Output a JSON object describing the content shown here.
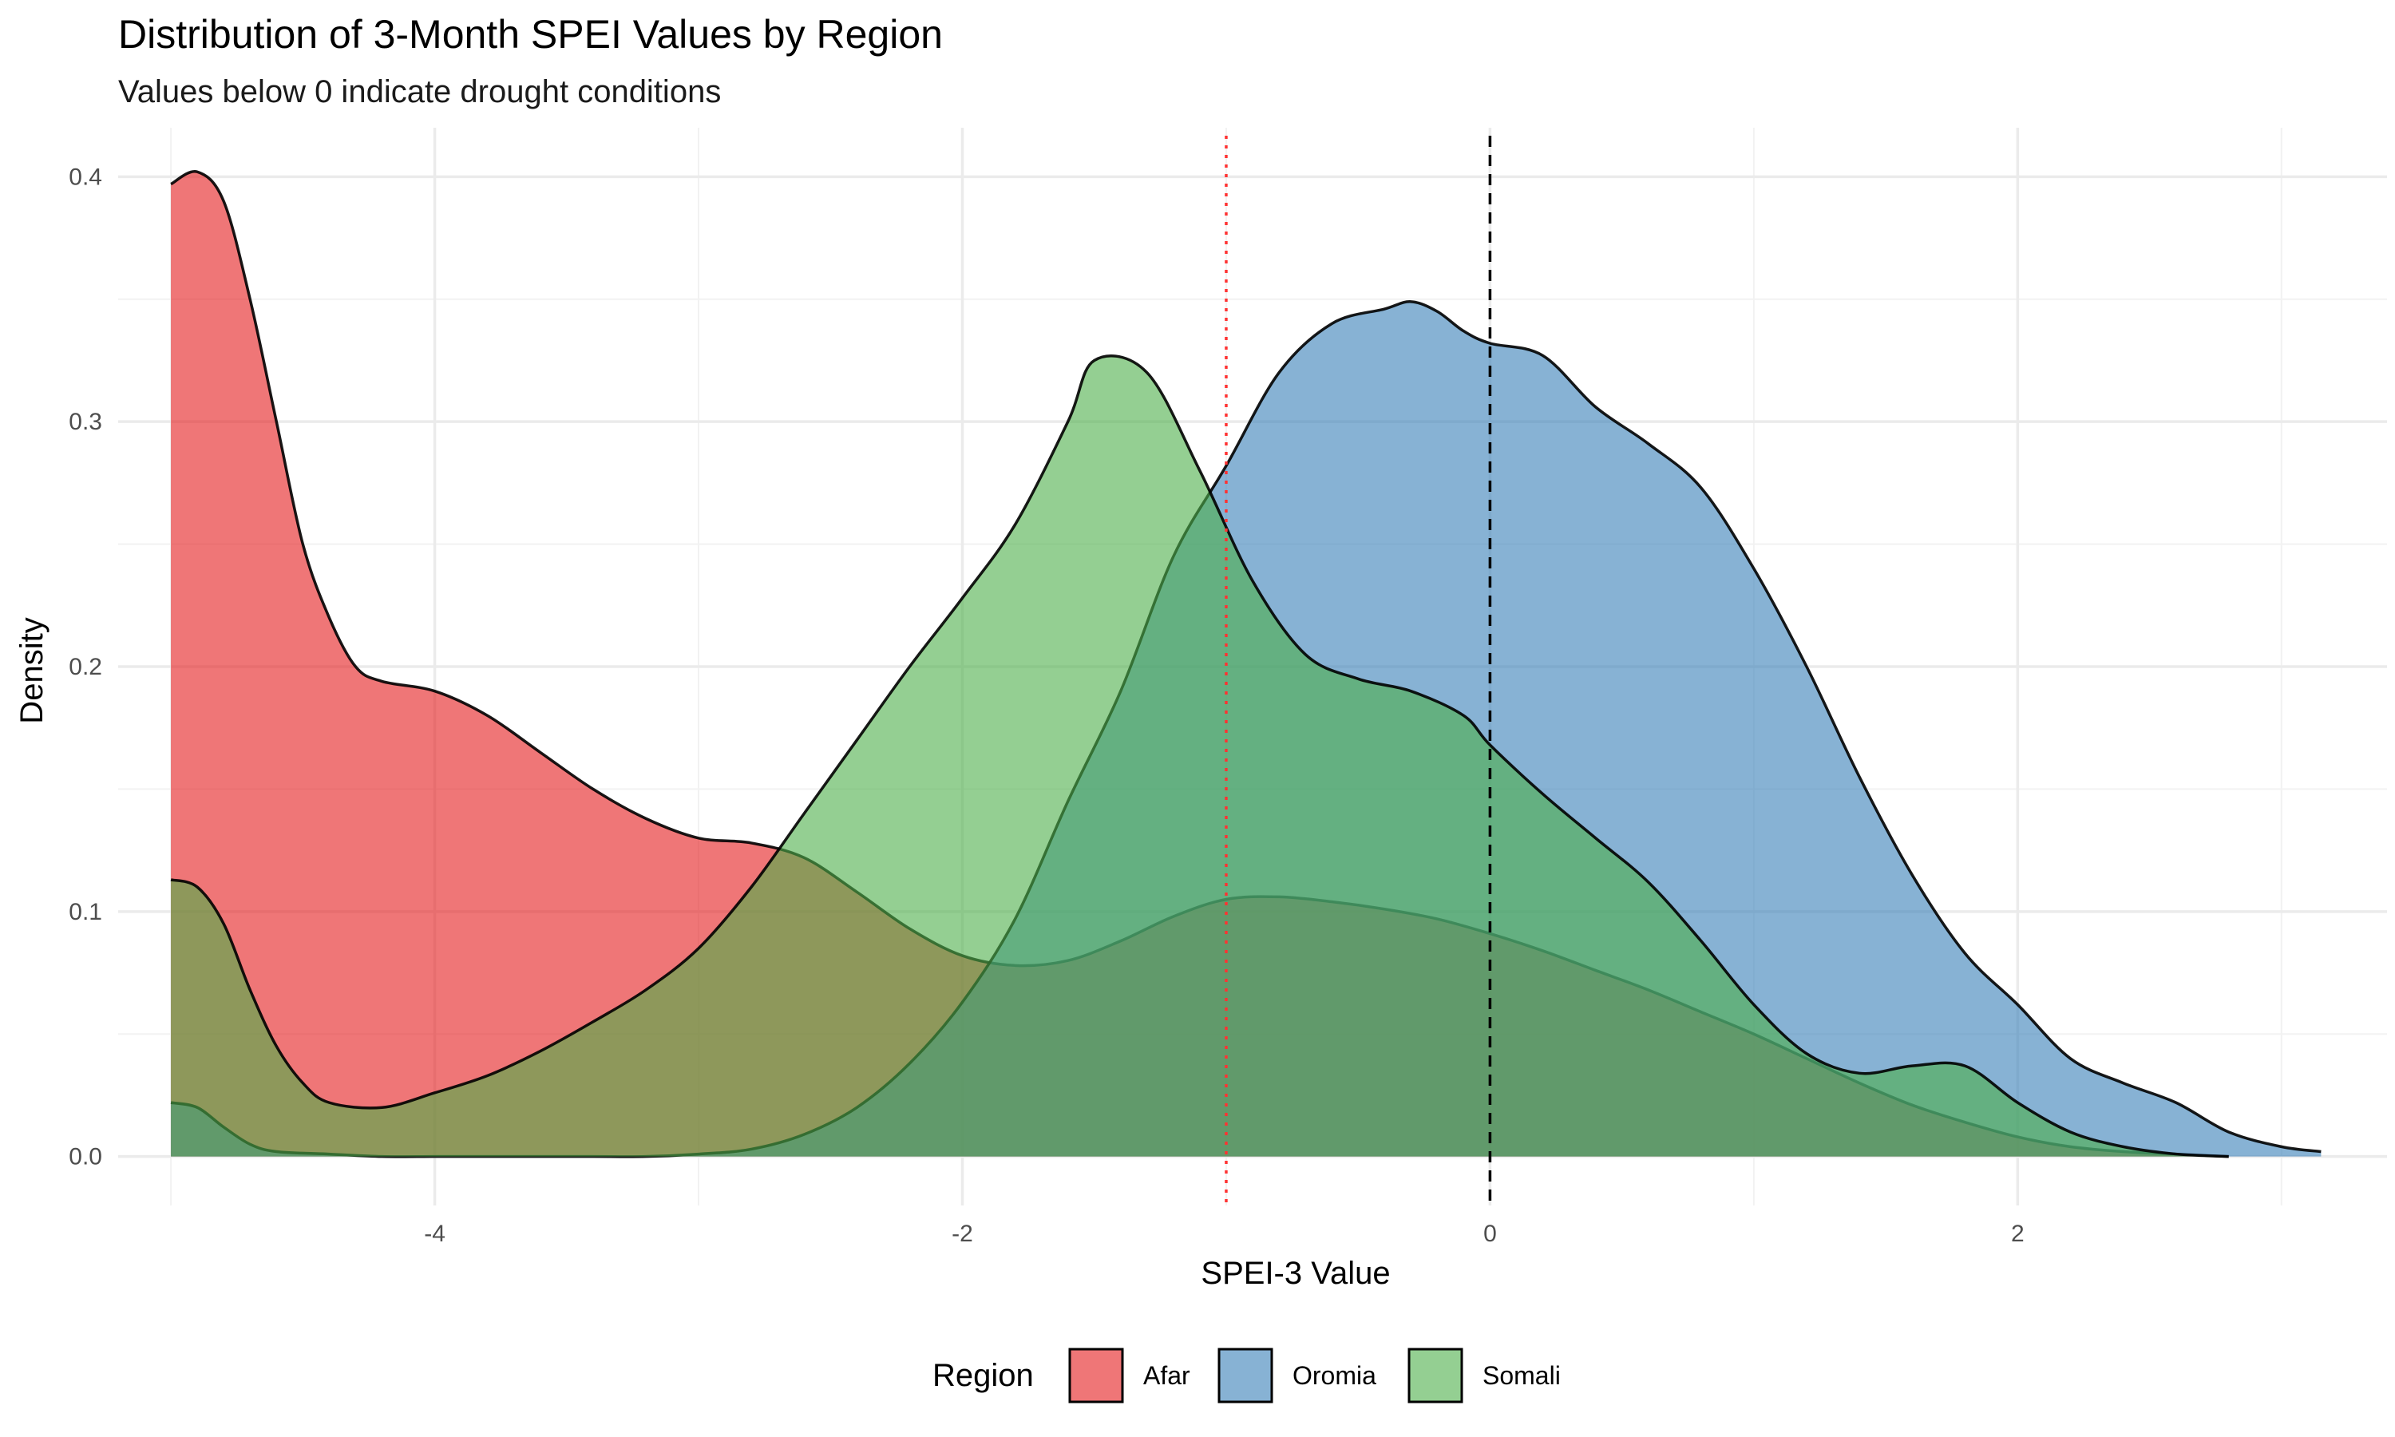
{
  "chart_data": {
    "type": "area",
    "subtype": "density",
    "title": "Distribution of 3-Month SPEI Values by Region",
    "subtitle": "Values below 0 indicate drought conditions",
    "xlabel": "SPEI-3 Value",
    "ylabel": "Density",
    "xlim": [
      -5.2,
      3.4
    ],
    "ylim": [
      -0.02,
      0.42
    ],
    "x_ticks": [
      -4,
      -2,
      0,
      2
    ],
    "x_tick_labels": [
      "-4",
      "-2",
      "0",
      "2"
    ],
    "y_ticks": [
      0.0,
      0.1,
      0.2,
      0.3,
      0.4
    ],
    "y_tick_labels": [
      "0.0",
      "0.1",
      "0.2",
      "0.3",
      "0.4"
    ],
    "grid": true,
    "legend": {
      "title": "Region",
      "position": "bottom"
    },
    "reference_lines": [
      {
        "x": 0,
        "style": "dashed",
        "color": "#000000"
      },
      {
        "x": -1,
        "style": "dotted",
        "color": "#ff3333"
      }
    ],
    "series": [
      {
        "name": "Afar",
        "color": "#E41A1C",
        "points": [
          [
            -5.0,
            0.397
          ],
          [
            -4.9,
            0.402
          ],
          [
            -4.8,
            0.39
          ],
          [
            -4.7,
            0.35
          ],
          [
            -4.6,
            0.3
          ],
          [
            -4.5,
            0.25
          ],
          [
            -4.4,
            0.22
          ],
          [
            -4.3,
            0.2
          ],
          [
            -4.2,
            0.194
          ],
          [
            -4.0,
            0.19
          ],
          [
            -3.8,
            0.18
          ],
          [
            -3.6,
            0.165
          ],
          [
            -3.4,
            0.15
          ],
          [
            -3.2,
            0.138
          ],
          [
            -3.0,
            0.13
          ],
          [
            -2.8,
            0.128
          ],
          [
            -2.6,
            0.122
          ],
          [
            -2.4,
            0.108
          ],
          [
            -2.2,
            0.093
          ],
          [
            -2.0,
            0.082
          ],
          [
            -1.8,
            0.078
          ],
          [
            -1.6,
            0.08
          ],
          [
            -1.4,
            0.088
          ],
          [
            -1.2,
            0.098
          ],
          [
            -1.0,
            0.105
          ],
          [
            -0.8,
            0.106
          ],
          [
            -0.6,
            0.104
          ],
          [
            -0.4,
            0.101
          ],
          [
            -0.2,
            0.097
          ],
          [
            0.0,
            0.091
          ],
          [
            0.2,
            0.084
          ],
          [
            0.4,
            0.076
          ],
          [
            0.6,
            0.068
          ],
          [
            0.8,
            0.059
          ],
          [
            1.0,
            0.05
          ],
          [
            1.2,
            0.04
          ],
          [
            1.4,
            0.03
          ],
          [
            1.6,
            0.021
          ],
          [
            1.8,
            0.014
          ],
          [
            2.0,
            0.008
          ],
          [
            2.2,
            0.004
          ],
          [
            2.4,
            0.002
          ],
          [
            2.6,
            0.001
          ],
          [
            2.8,
            0.0
          ]
        ]
      },
      {
        "name": "Oromia",
        "color": "#377EB8",
        "points": [
          [
            -5.0,
            0.022
          ],
          [
            -4.9,
            0.02
          ],
          [
            -4.8,
            0.012
          ],
          [
            -4.7,
            0.005
          ],
          [
            -4.6,
            0.002
          ],
          [
            -4.4,
            0.001
          ],
          [
            -4.2,
            0.0
          ],
          [
            -4.0,
            0.0
          ],
          [
            -3.8,
            0.0
          ],
          [
            -3.6,
            0.0
          ],
          [
            -3.4,
            0.0
          ],
          [
            -3.2,
            0.0
          ],
          [
            -3.0,
            0.001
          ],
          [
            -2.8,
            0.003
          ],
          [
            -2.6,
            0.009
          ],
          [
            -2.4,
            0.02
          ],
          [
            -2.2,
            0.038
          ],
          [
            -2.0,
            0.063
          ],
          [
            -1.8,
            0.097
          ],
          [
            -1.6,
            0.145
          ],
          [
            -1.4,
            0.19
          ],
          [
            -1.2,
            0.245
          ],
          [
            -1.0,
            0.282
          ],
          [
            -0.8,
            0.32
          ],
          [
            -0.6,
            0.34
          ],
          [
            -0.4,
            0.346
          ],
          [
            -0.3,
            0.349
          ],
          [
            -0.2,
            0.345
          ],
          [
            -0.1,
            0.337
          ],
          [
            0.0,
            0.332
          ],
          [
            0.2,
            0.327
          ],
          [
            0.4,
            0.306
          ],
          [
            0.6,
            0.291
          ],
          [
            0.8,
            0.273
          ],
          [
            1.0,
            0.24
          ],
          [
            1.2,
            0.2
          ],
          [
            1.4,
            0.155
          ],
          [
            1.6,
            0.115
          ],
          [
            1.8,
            0.083
          ],
          [
            2.0,
            0.062
          ],
          [
            2.2,
            0.04
          ],
          [
            2.4,
            0.03
          ],
          [
            2.6,
            0.022
          ],
          [
            2.8,
            0.01
          ],
          [
            3.0,
            0.004
          ],
          [
            3.15,
            0.002
          ]
        ]
      },
      {
        "name": "Somali",
        "color": "#4DAF4A",
        "points": [
          [
            -5.0,
            0.113
          ],
          [
            -4.9,
            0.11
          ],
          [
            -4.8,
            0.095
          ],
          [
            -4.7,
            0.068
          ],
          [
            -4.6,
            0.045
          ],
          [
            -4.5,
            0.03
          ],
          [
            -4.4,
            0.022
          ],
          [
            -4.2,
            0.02
          ],
          [
            -4.0,
            0.026
          ],
          [
            -3.8,
            0.033
          ],
          [
            -3.6,
            0.043
          ],
          [
            -3.4,
            0.055
          ],
          [
            -3.2,
            0.068
          ],
          [
            -3.0,
            0.085
          ],
          [
            -2.8,
            0.11
          ],
          [
            -2.6,
            0.14
          ],
          [
            -2.4,
            0.17
          ],
          [
            -2.2,
            0.2
          ],
          [
            -2.0,
            0.228
          ],
          [
            -1.8,
            0.258
          ],
          [
            -1.6,
            0.3
          ],
          [
            -1.5,
            0.325
          ],
          [
            -1.3,
            0.32
          ],
          [
            -1.1,
            0.28
          ],
          [
            -0.9,
            0.235
          ],
          [
            -0.7,
            0.205
          ],
          [
            -0.5,
            0.195
          ],
          [
            -0.3,
            0.19
          ],
          [
            -0.1,
            0.18
          ],
          [
            0.0,
            0.168
          ],
          [
            0.2,
            0.148
          ],
          [
            0.4,
            0.13
          ],
          [
            0.6,
            0.112
          ],
          [
            0.8,
            0.088
          ],
          [
            1.0,
            0.062
          ],
          [
            1.2,
            0.042
          ],
          [
            1.4,
            0.034
          ],
          [
            1.6,
            0.037
          ],
          [
            1.8,
            0.037
          ],
          [
            2.0,
            0.022
          ],
          [
            2.2,
            0.01
          ],
          [
            2.4,
            0.004
          ],
          [
            2.6,
            0.001
          ],
          [
            2.8,
            0.0
          ]
        ]
      }
    ]
  }
}
